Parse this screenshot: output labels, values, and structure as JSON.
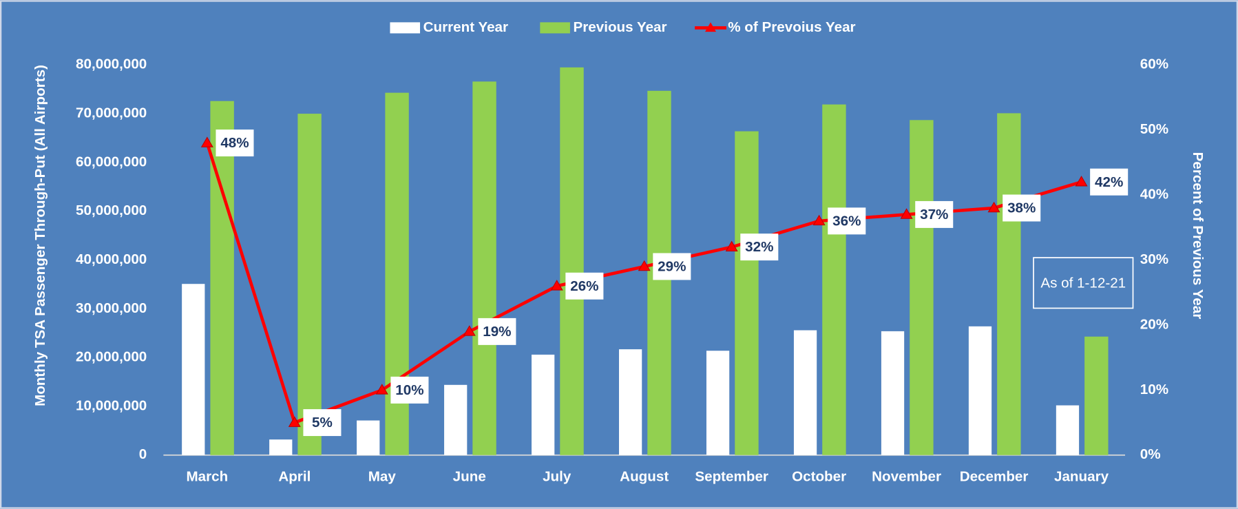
{
  "chart_data": {
    "type": "bar",
    "categories": [
      "March",
      "April",
      "May",
      "June",
      "July",
      "August",
      "September",
      "October",
      "November",
      "December",
      "January"
    ],
    "series": [
      {
        "name": "Current Year",
        "color": "#ffffff",
        "values": [
          35100000,
          3200000,
          7100000,
          14400000,
          20600000,
          21700000,
          21400000,
          25600000,
          25400000,
          26400000,
          10200000
        ]
      },
      {
        "name": "Previous Year",
        "color": "#92d050",
        "values": [
          72600000,
          70000000,
          74300000,
          76600000,
          79500000,
          74700000,
          66400000,
          71900000,
          68700000,
          70100000,
          24300000
        ]
      },
      {
        "name": "% of Prevoius Year",
        "color": "#ff0000",
        "type": "line",
        "axis": "y2",
        "values": [
          48,
          5,
          10,
          19,
          26,
          29,
          32,
          36,
          37,
          38,
          42
        ],
        "value_labels": [
          "48%",
          "5%",
          "10%",
          "19%",
          "26%",
          "29%",
          "32%",
          "36%",
          "37%",
          "38%",
          "42%"
        ]
      }
    ],
    "y_label": "Monthly TSA Passenger Through-Put (All Airports)",
    "y2_label": "Percent of Previous Year",
    "annotation": "As of 1-12-21",
    "ylim": [
      0,
      80000000
    ],
    "yticks": [
      {
        "value": 0,
        "label": "0"
      },
      {
        "value": 10000000,
        "label": "10,000,000"
      },
      {
        "value": 20000000,
        "label": "20,000,000"
      },
      {
        "value": 30000000,
        "label": "30,000,000"
      },
      {
        "value": 40000000,
        "label": "40,000,000"
      },
      {
        "value": 50000000,
        "label": "50,000,000"
      },
      {
        "value": 60000000,
        "label": "60,000,000"
      },
      {
        "value": 70000000,
        "label": "70,000,000"
      },
      {
        "value": 80000000,
        "label": "80,000,000"
      }
    ],
    "y2lim": [
      0,
      60
    ],
    "y2ticks": [
      {
        "value": 0,
        "label": "0%"
      },
      {
        "value": 10,
        "label": "10%"
      },
      {
        "value": 20,
        "label": "20%"
      },
      {
        "value": 30,
        "label": "30%"
      },
      {
        "value": 40,
        "label": "40%"
      },
      {
        "value": 50,
        "label": "50%"
      },
      {
        "value": 60,
        "label": "60%"
      }
    ],
    "legend": "top",
    "grid": false
  }
}
